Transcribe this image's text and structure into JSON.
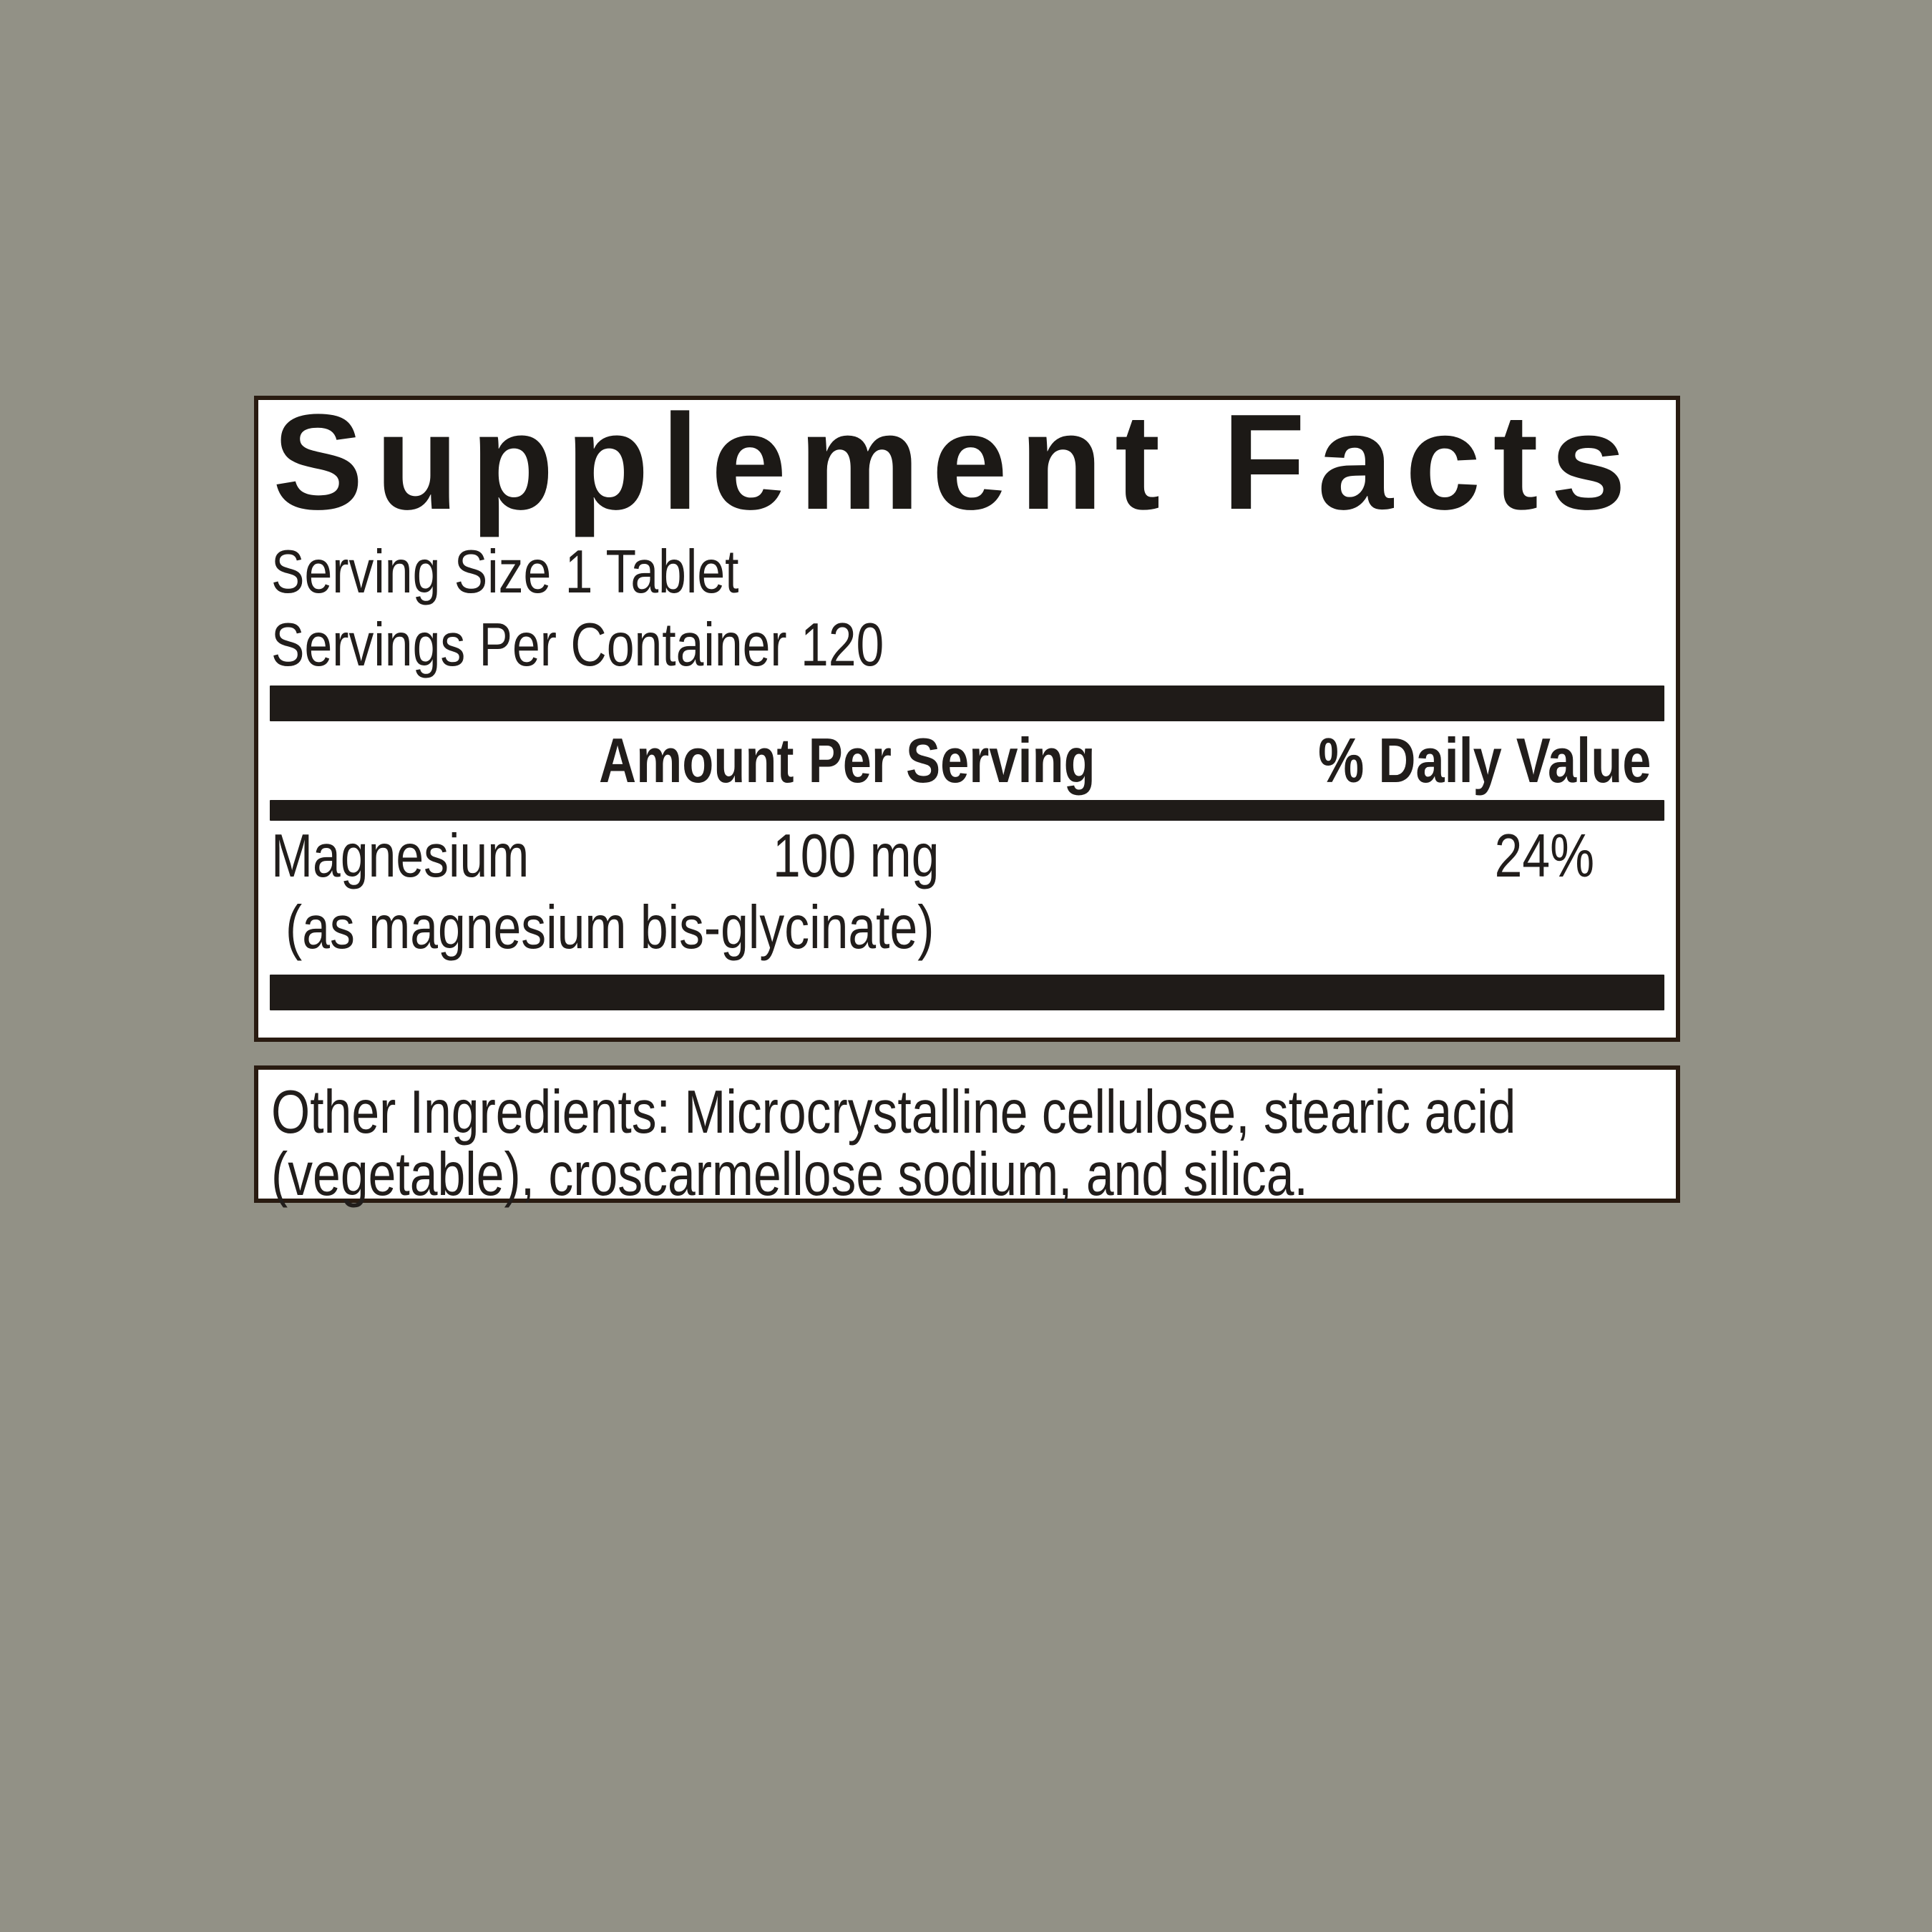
{
  "colors": {
    "background": "#929186",
    "panel_fill": "#ffffff",
    "panel_border": "#291b11",
    "divider_bar": "#1f1b18",
    "text": "#211d1b"
  },
  "panel": {
    "title": "Supplement Facts",
    "serving_size": "Serving Size 1 Tablet",
    "servings_per_container": "Servings Per Container 120",
    "columns": {
      "amount": "Amount Per Serving",
      "daily_value": "% Daily Value"
    },
    "rows": [
      {
        "name": "Magnesium",
        "detail": "(as magnesium bis-glycinate)",
        "amount": "100 mg",
        "dv": "24%"
      }
    ]
  },
  "other_ingredients": {
    "line1": "Other Ingredients: Microcrystalline cellulose, stearic acid",
    "line2": "(vegetable), croscarmellose sodium, and silica."
  }
}
